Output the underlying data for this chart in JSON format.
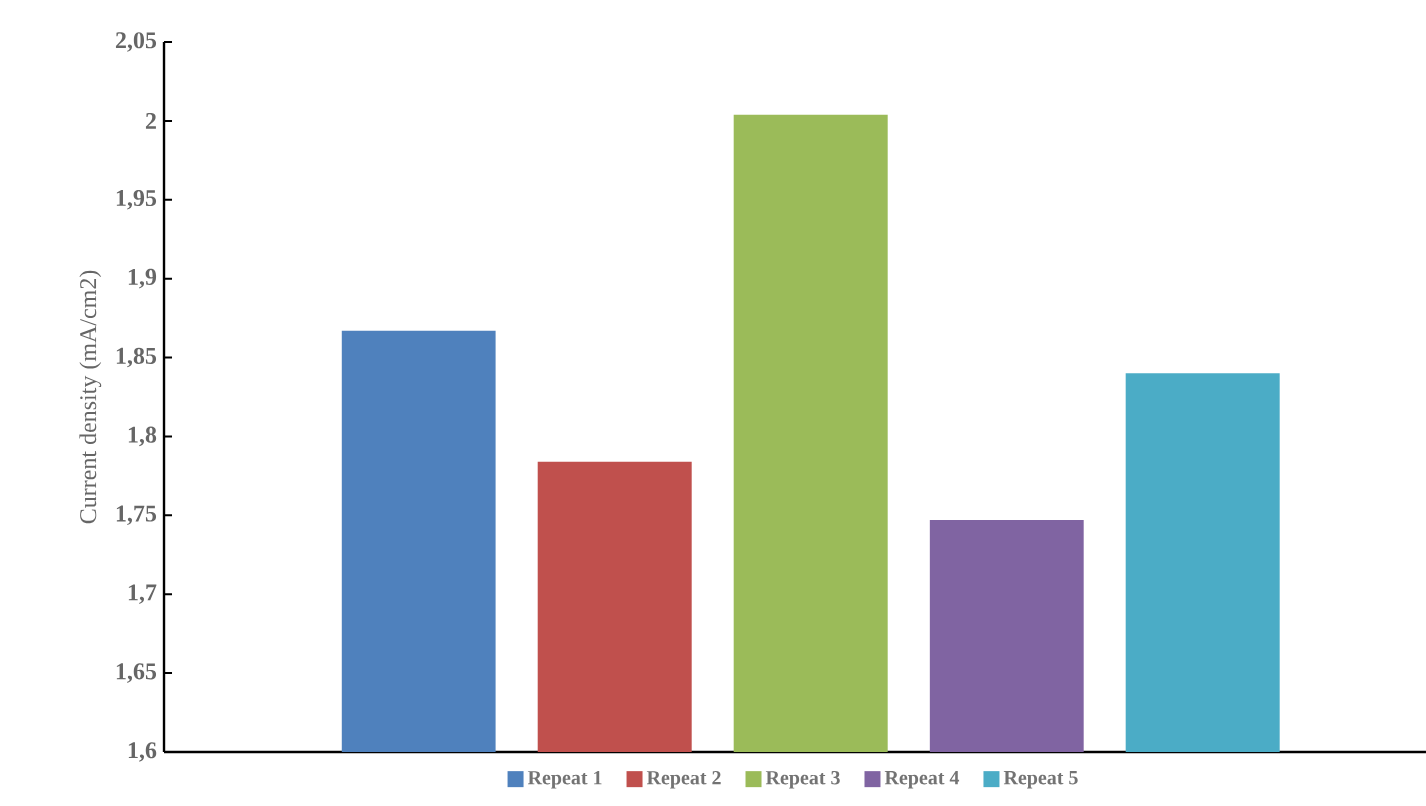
{
  "chart_data": {
    "type": "bar",
    "ylabel": "Current density (mA/cm2)",
    "categories": [
      null
    ],
    "series": [
      {
        "name": "Repeat 1",
        "color": "#4f81bd",
        "values": [
          1.867
        ]
      },
      {
        "name": "Repeat 2",
        "color": "#c0504d",
        "values": [
          1.784
        ]
      },
      {
        "name": "Repeat 3",
        "color": "#9bbb59",
        "values": [
          2.004
        ]
      },
      {
        "name": "Repeat 4",
        "color": "#8064a2",
        "values": [
          1.747
        ]
      },
      {
        "name": "Repeat 5",
        "color": "#4bacc6",
        "values": [
          1.84
        ]
      }
    ],
    "ylim": [
      1.6,
      2.05
    ],
    "yticks": [
      {
        "value": 1.6,
        "label": "1,6"
      },
      {
        "value": 1.65,
        "label": "1,65"
      },
      {
        "value": 1.7,
        "label": "1,7"
      },
      {
        "value": 1.75,
        "label": "1,75"
      },
      {
        "value": 1.8,
        "label": "1,8"
      },
      {
        "value": 1.85,
        "label": "1,85"
      },
      {
        "value": 1.9,
        "label": "1,9"
      },
      {
        "value": 1.95,
        "label": "1,95"
      },
      {
        "value": 2,
        "label": "2"
      },
      {
        "value": 2.05,
        "label": "2,05"
      }
    ],
    "legend": "bottom"
  }
}
